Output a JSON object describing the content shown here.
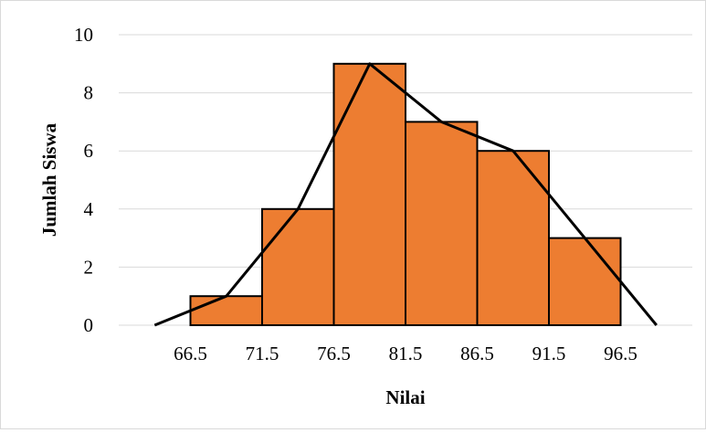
{
  "chart_data": {
    "type": "bar",
    "subtype": "histogram-with-frequency-polygon",
    "title": "",
    "xlabel": "Nilai",
    "ylabel": "Jumlah Siswa",
    "x_ticks": [
      "66.5",
      "71.5",
      "76.5",
      "81.5",
      "86.5",
      "91.5",
      "96.5"
    ],
    "x_range": [
      61.5,
      101.5
    ],
    "ylim": [
      0,
      10
    ],
    "y_ticks": [
      0,
      2,
      4,
      6,
      8,
      10
    ],
    "grid": "horizontal",
    "legend": "none",
    "bins": [
      {
        "from": 66.5,
        "to": 71.5,
        "value": 1
      },
      {
        "from": 71.5,
        "to": 76.5,
        "value": 4
      },
      {
        "from": 76.5,
        "to": 81.5,
        "value": 9
      },
      {
        "from": 81.5,
        "to": 86.5,
        "value": 7
      },
      {
        "from": 86.5,
        "to": 91.5,
        "value": 6
      },
      {
        "from": 91.5,
        "to": 96.5,
        "value": 3
      }
    ],
    "polygon": {
      "x": [
        64,
        69,
        74,
        79,
        84,
        89,
        94,
        99
      ],
      "y": [
        0,
        1,
        4,
        9,
        7,
        6,
        3,
        0
      ]
    },
    "colors": {
      "bar_fill": "#ed7d31",
      "bar_stroke": "#000000",
      "polygon": "#000000",
      "grid": "#d9d9d9"
    }
  }
}
